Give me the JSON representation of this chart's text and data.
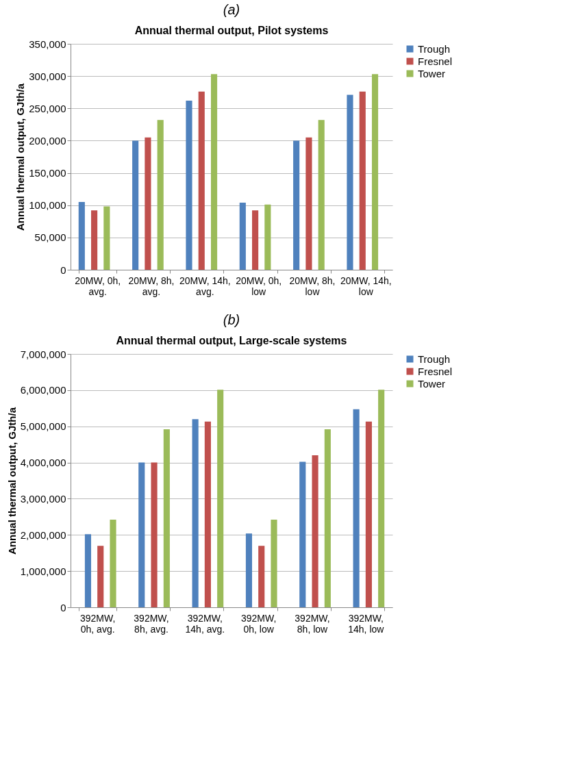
{
  "chart_data": [
    {
      "type": "bar",
      "title": "(a)",
      "subtitle": "Annual thermal output, Pilot systems",
      "ylabel": "Annual thermal output, GJth/a",
      "categories": [
        "20MW, 0h,\navg.",
        "20MW, 8h,\navg.",
        "20MW, 14h,\navg.",
        "20MW, 0h,\nlow",
        "20MW, 8h,\nlow",
        "20MW, 14h,\nlow"
      ],
      "series": [
        {
          "name": "Trough",
          "color": "#4f81bd",
          "values": [
            105000,
            200000,
            262000,
            104000,
            200000,
            271000
          ]
        },
        {
          "name": "Fresnel",
          "color": "#c0504d",
          "values": [
            92000,
            205000,
            276000,
            92000,
            205000,
            276000
          ]
        },
        {
          "name": "Tower",
          "color": "#9bbb59",
          "values": [
            98000,
            232000,
            303000,
            101000,
            232000,
            303000
          ]
        }
      ],
      "ylim": [
        0,
        350000
      ],
      "yticks": [
        {
          "value": 0,
          "label": "0"
        },
        {
          "value": 50000,
          "label": "50,000"
        },
        {
          "value": 100000,
          "label": "100,000"
        },
        {
          "value": 150000,
          "label": "150,000"
        },
        {
          "value": 200000,
          "label": "200,000"
        },
        {
          "value": 250000,
          "label": "250,000"
        },
        {
          "value": 300000,
          "label": "300,000"
        },
        {
          "value": 350000,
          "label": "350,000"
        }
      ],
      "grid": "y",
      "legend": "right"
    },
    {
      "type": "bar",
      "title": "(b)",
      "subtitle": "Annual thermal output, Large-scale systems",
      "ylabel": "Annual thermal output, GJth/a",
      "categories": [
        "392MW,\n0h, avg.",
        "392MW,\n8h, avg.",
        "392MW,\n14h, avg.",
        "392MW,\n0h, low",
        "392MW,\n8h, low",
        "392MW,\n14h, low"
      ],
      "series": [
        {
          "name": "Trough",
          "color": "#4f81bd",
          "values": [
            2020000,
            4000000,
            5200000,
            2040000,
            4020000,
            5470000
          ]
        },
        {
          "name": "Fresnel",
          "color": "#c0504d",
          "values": [
            1700000,
            4000000,
            5130000,
            1700000,
            4200000,
            5130000
          ]
        },
        {
          "name": "Tower",
          "color": "#9bbb59",
          "values": [
            2420000,
            4920000,
            6010000,
            2420000,
            4920000,
            6010000
          ]
        }
      ],
      "ylim": [
        0,
        7000000
      ],
      "yticks": [
        {
          "value": 0,
          "label": "0"
        },
        {
          "value": 1000000,
          "label": "1,000,000"
        },
        {
          "value": 2000000,
          "label": "2,000,000"
        },
        {
          "value": 3000000,
          "label": "3,000,000"
        },
        {
          "value": 4000000,
          "label": "4,000,000"
        },
        {
          "value": 5000000,
          "label": "5,000,000"
        },
        {
          "value": 6000000,
          "label": "6,000,000"
        },
        {
          "value": 7000000,
          "label": "7,000,000"
        }
      ],
      "grid": "y",
      "legend": "right"
    }
  ]
}
